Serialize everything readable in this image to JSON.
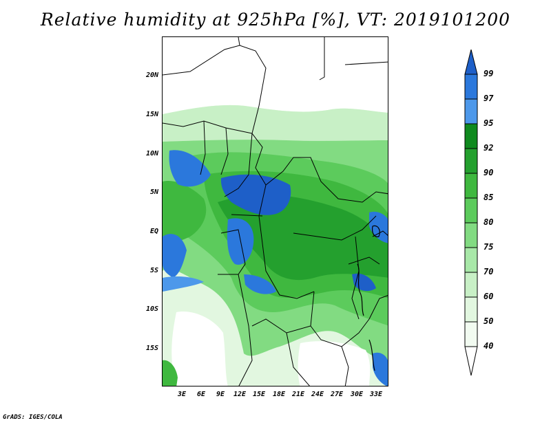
{
  "title": "Relative humidity at 925hPa [%], VT: 2019101200",
  "credit": "GrADS: IGES/COLA",
  "lat_labels": [
    "20N",
    "15N",
    "10N",
    "5N",
    "EQ",
    "5S",
    "10S",
    "15S"
  ],
  "lon_labels": [
    "3E",
    "6E",
    "9E",
    "12E",
    "15E",
    "18E",
    "21E",
    "24E",
    "27E",
    "30E",
    "33E"
  ],
  "colorbar": {
    "labels": [
      "99",
      "97",
      "95",
      "92",
      "90",
      "85",
      "80",
      "75",
      "70",
      "60",
      "50",
      "40"
    ],
    "colors": {
      "c99": "#1e5fc8",
      "c97": "#2b78dc",
      "c95": "#4d98ea",
      "c92": "#0f8a1e",
      "c90": "#24a02e",
      "c85": "#3fb83f",
      "c80": "#5ccb5c",
      "c75": "#82db82",
      "c70": "#a8e8a8",
      "c60": "#c8f0c6",
      "c50": "#e2f7e0",
      "c40": "#ffffff"
    }
  }
}
